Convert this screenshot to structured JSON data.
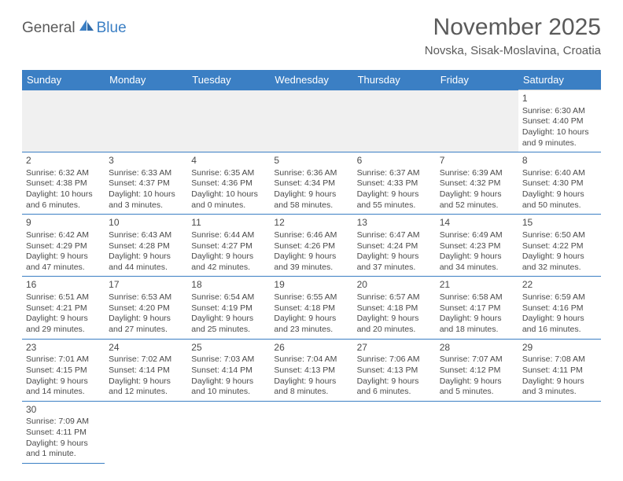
{
  "logo": {
    "text1": "General",
    "text2": "Blue"
  },
  "title": "November 2025",
  "subtitle": "Novska, Sisak-Moslavina, Croatia",
  "colors": {
    "header_bg": "#3b7fc4",
    "accent": "#3b7fc4",
    "text": "#4a4a4a",
    "muted": "#5a5a5a",
    "blank_bg": "#f0f0f0"
  },
  "weekdays": [
    "Sunday",
    "Monday",
    "Tuesday",
    "Wednesday",
    "Thursday",
    "Friday",
    "Saturday"
  ],
  "weeks": [
    [
      null,
      null,
      null,
      null,
      null,
      null,
      {
        "d": "1",
        "sr": "Sunrise: 6:30 AM",
        "ss": "Sunset: 4:40 PM",
        "dl1": "Daylight: 10 hours",
        "dl2": "and 9 minutes."
      }
    ],
    [
      {
        "d": "2",
        "sr": "Sunrise: 6:32 AM",
        "ss": "Sunset: 4:38 PM",
        "dl1": "Daylight: 10 hours",
        "dl2": "and 6 minutes."
      },
      {
        "d": "3",
        "sr": "Sunrise: 6:33 AM",
        "ss": "Sunset: 4:37 PM",
        "dl1": "Daylight: 10 hours",
        "dl2": "and 3 minutes."
      },
      {
        "d": "4",
        "sr": "Sunrise: 6:35 AM",
        "ss": "Sunset: 4:36 PM",
        "dl1": "Daylight: 10 hours",
        "dl2": "and 0 minutes."
      },
      {
        "d": "5",
        "sr": "Sunrise: 6:36 AM",
        "ss": "Sunset: 4:34 PM",
        "dl1": "Daylight: 9 hours",
        "dl2": "and 58 minutes."
      },
      {
        "d": "6",
        "sr": "Sunrise: 6:37 AM",
        "ss": "Sunset: 4:33 PM",
        "dl1": "Daylight: 9 hours",
        "dl2": "and 55 minutes."
      },
      {
        "d": "7",
        "sr": "Sunrise: 6:39 AM",
        "ss": "Sunset: 4:32 PM",
        "dl1": "Daylight: 9 hours",
        "dl2": "and 52 minutes."
      },
      {
        "d": "8",
        "sr": "Sunrise: 6:40 AM",
        "ss": "Sunset: 4:30 PM",
        "dl1": "Daylight: 9 hours",
        "dl2": "and 50 minutes."
      }
    ],
    [
      {
        "d": "9",
        "sr": "Sunrise: 6:42 AM",
        "ss": "Sunset: 4:29 PM",
        "dl1": "Daylight: 9 hours",
        "dl2": "and 47 minutes."
      },
      {
        "d": "10",
        "sr": "Sunrise: 6:43 AM",
        "ss": "Sunset: 4:28 PM",
        "dl1": "Daylight: 9 hours",
        "dl2": "and 44 minutes."
      },
      {
        "d": "11",
        "sr": "Sunrise: 6:44 AM",
        "ss": "Sunset: 4:27 PM",
        "dl1": "Daylight: 9 hours",
        "dl2": "and 42 minutes."
      },
      {
        "d": "12",
        "sr": "Sunrise: 6:46 AM",
        "ss": "Sunset: 4:26 PM",
        "dl1": "Daylight: 9 hours",
        "dl2": "and 39 minutes."
      },
      {
        "d": "13",
        "sr": "Sunrise: 6:47 AM",
        "ss": "Sunset: 4:24 PM",
        "dl1": "Daylight: 9 hours",
        "dl2": "and 37 minutes."
      },
      {
        "d": "14",
        "sr": "Sunrise: 6:49 AM",
        "ss": "Sunset: 4:23 PM",
        "dl1": "Daylight: 9 hours",
        "dl2": "and 34 minutes."
      },
      {
        "d": "15",
        "sr": "Sunrise: 6:50 AM",
        "ss": "Sunset: 4:22 PM",
        "dl1": "Daylight: 9 hours",
        "dl2": "and 32 minutes."
      }
    ],
    [
      {
        "d": "16",
        "sr": "Sunrise: 6:51 AM",
        "ss": "Sunset: 4:21 PM",
        "dl1": "Daylight: 9 hours",
        "dl2": "and 29 minutes."
      },
      {
        "d": "17",
        "sr": "Sunrise: 6:53 AM",
        "ss": "Sunset: 4:20 PM",
        "dl1": "Daylight: 9 hours",
        "dl2": "and 27 minutes."
      },
      {
        "d": "18",
        "sr": "Sunrise: 6:54 AM",
        "ss": "Sunset: 4:19 PM",
        "dl1": "Daylight: 9 hours",
        "dl2": "and 25 minutes."
      },
      {
        "d": "19",
        "sr": "Sunrise: 6:55 AM",
        "ss": "Sunset: 4:18 PM",
        "dl1": "Daylight: 9 hours",
        "dl2": "and 23 minutes."
      },
      {
        "d": "20",
        "sr": "Sunrise: 6:57 AM",
        "ss": "Sunset: 4:18 PM",
        "dl1": "Daylight: 9 hours",
        "dl2": "and 20 minutes."
      },
      {
        "d": "21",
        "sr": "Sunrise: 6:58 AM",
        "ss": "Sunset: 4:17 PM",
        "dl1": "Daylight: 9 hours",
        "dl2": "and 18 minutes."
      },
      {
        "d": "22",
        "sr": "Sunrise: 6:59 AM",
        "ss": "Sunset: 4:16 PM",
        "dl1": "Daylight: 9 hours",
        "dl2": "and 16 minutes."
      }
    ],
    [
      {
        "d": "23",
        "sr": "Sunrise: 7:01 AM",
        "ss": "Sunset: 4:15 PM",
        "dl1": "Daylight: 9 hours",
        "dl2": "and 14 minutes."
      },
      {
        "d": "24",
        "sr": "Sunrise: 7:02 AM",
        "ss": "Sunset: 4:14 PM",
        "dl1": "Daylight: 9 hours",
        "dl2": "and 12 minutes."
      },
      {
        "d": "25",
        "sr": "Sunrise: 7:03 AM",
        "ss": "Sunset: 4:14 PM",
        "dl1": "Daylight: 9 hours",
        "dl2": "and 10 minutes."
      },
      {
        "d": "26",
        "sr": "Sunrise: 7:04 AM",
        "ss": "Sunset: 4:13 PM",
        "dl1": "Daylight: 9 hours",
        "dl2": "and 8 minutes."
      },
      {
        "d": "27",
        "sr": "Sunrise: 7:06 AM",
        "ss": "Sunset: 4:13 PM",
        "dl1": "Daylight: 9 hours",
        "dl2": "and 6 minutes."
      },
      {
        "d": "28",
        "sr": "Sunrise: 7:07 AM",
        "ss": "Sunset: 4:12 PM",
        "dl1": "Daylight: 9 hours",
        "dl2": "and 5 minutes."
      },
      {
        "d": "29",
        "sr": "Sunrise: 7:08 AM",
        "ss": "Sunset: 4:11 PM",
        "dl1": "Daylight: 9 hours",
        "dl2": "and 3 minutes."
      }
    ],
    [
      {
        "d": "30",
        "sr": "Sunrise: 7:09 AM",
        "ss": "Sunset: 4:11 PM",
        "dl1": "Daylight: 9 hours",
        "dl2": "and 1 minute."
      },
      null,
      null,
      null,
      null,
      null,
      null
    ]
  ]
}
